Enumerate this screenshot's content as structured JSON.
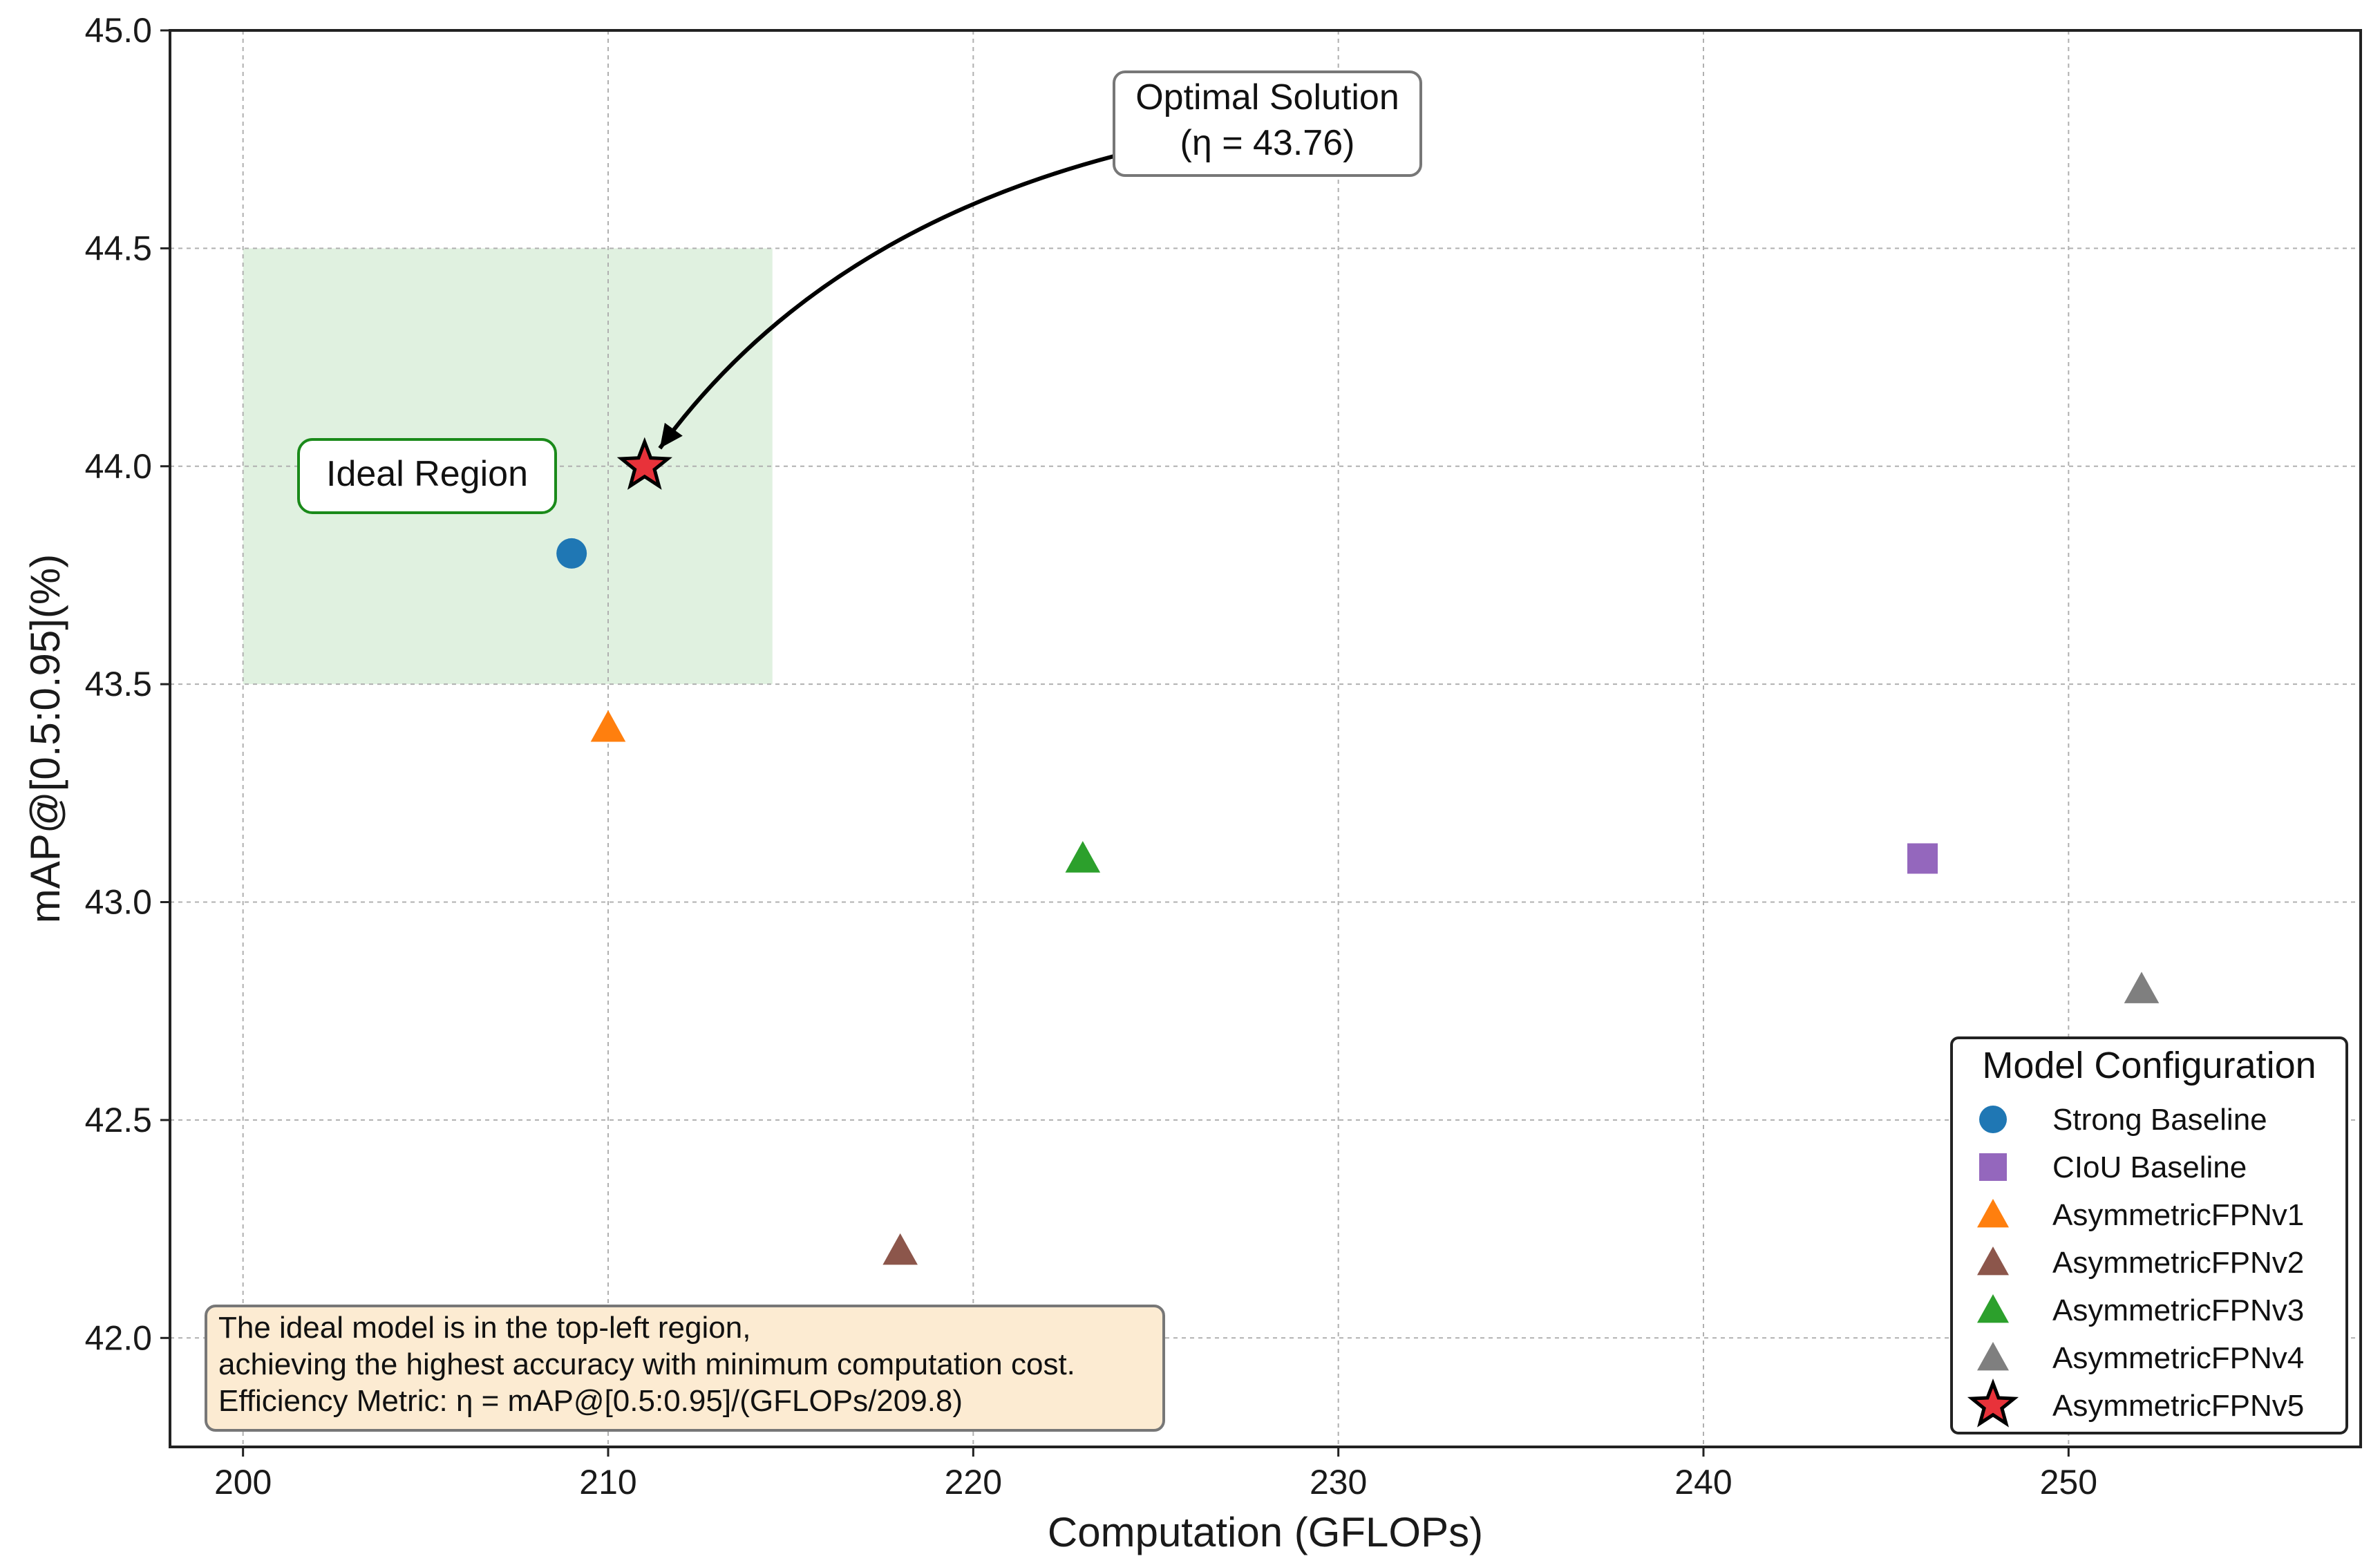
{
  "chart_data": {
    "type": "scatter",
    "title": "",
    "xlabel": "Computation (GFLOPs)",
    "ylabel": "mAP@[0.5:0.95](%)",
    "xlim": [
      198,
      258
    ],
    "ylim": [
      41.75,
      45.0
    ],
    "xticks": [
      200,
      210,
      220,
      230,
      240,
      250
    ],
    "xtick_labels": [
      "200",
      "210",
      "220",
      "230",
      "240",
      "250"
    ],
    "yticks": [
      42.0,
      42.5,
      43.0,
      43.5,
      44.0,
      44.5,
      45.0
    ],
    "ytick_labels": [
      "42.0",
      "42.5",
      "43.0",
      "43.5",
      "44.0",
      "44.5",
      "45.0"
    ],
    "grid": true,
    "legend_position": "lower-right",
    "legend_title": "Model Configuration",
    "series": [
      {
        "name": "Strong Baseline",
        "marker": "circle",
        "color": "#1f77b4",
        "x": 209,
        "y": 43.8
      },
      {
        "name": "CIoU Baseline",
        "marker": "square",
        "color": "#9467bd",
        "x": 246,
        "y": 43.1
      },
      {
        "name": "AsymmetricFPNv1",
        "marker": "triangle",
        "color": "#ff7f0e",
        "x": 210,
        "y": 43.4
      },
      {
        "name": "AsymmetricFPNv2",
        "marker": "triangle",
        "color": "#8c564b",
        "x": 218,
        "y": 42.2
      },
      {
        "name": "AsymmetricFPNv3",
        "marker": "triangle",
        "color": "#2ca02c",
        "x": 223,
        "y": 43.1
      },
      {
        "name": "AsymmetricFPNv4",
        "marker": "triangle",
        "color": "#7f7f7f",
        "x": 252,
        "y": 42.8
      },
      {
        "name": "AsymmetricFPNv5",
        "marker": "star",
        "color": "#e8323a",
        "x": 211,
        "y": 44.0
      }
    ],
    "ideal_region": {
      "x": [
        200,
        214.5
      ],
      "y": [
        43.5,
        44.5
      ],
      "color": "#2ca02c",
      "label": "Ideal Region"
    },
    "optimal_annotation": {
      "line1": "Optimal Solution",
      "line2": "(η = 43.76)",
      "target_x": 211,
      "target_y": 44.0
    },
    "note_lines": [
      "The ideal model is in the top-left region,",
      "achieving the highest accuracy with minimum computation cost.",
      "Efficiency Metric: η = mAP@[0.5:0.95]/(GFLOPs/209.8)"
    ]
  }
}
